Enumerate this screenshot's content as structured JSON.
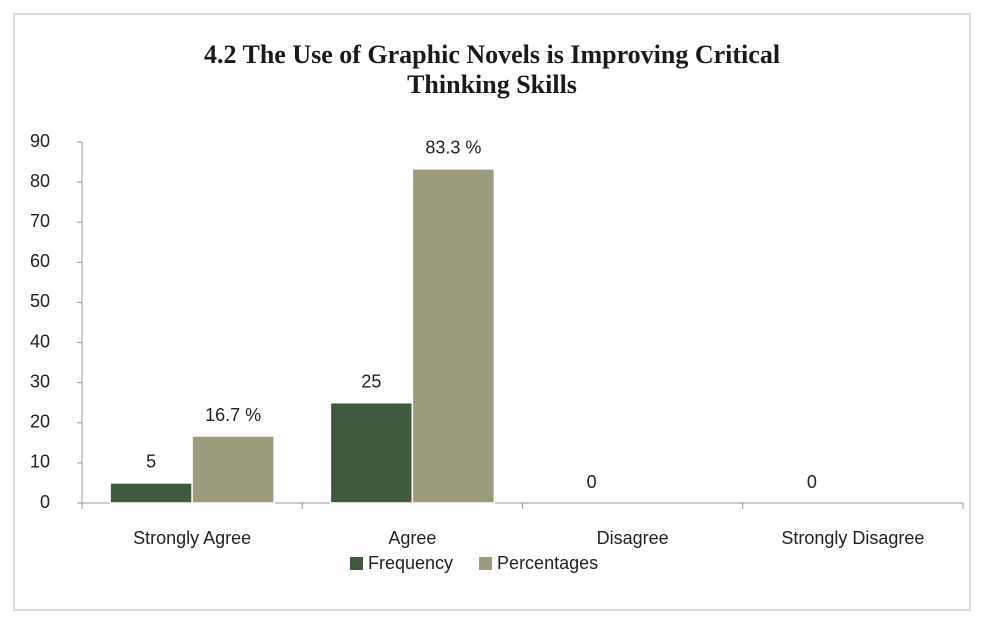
{
  "chart_data": {
    "type": "bar",
    "title": "4.2 The Use of  Graphic Novels is Improving Critical Thinking Skills",
    "categories": [
      "Strongly Agree",
      "Agree",
      "Disagree",
      "Strongly Disagree"
    ],
    "series": [
      {
        "name": "Frequency",
        "color": "#3f5a3c",
        "values": [
          5,
          25,
          0,
          0
        ],
        "value_labels": [
          "5",
          "25",
          "0",
          "0"
        ]
      },
      {
        "name": "Percentages",
        "color": "#9c9b7c",
        "values": [
          16.7,
          83.3,
          0,
          0
        ],
        "value_labels": [
          "16.7 %",
          "83.3 %",
          null,
          null
        ]
      }
    ],
    "ylim": [
      0,
      90
    ],
    "yticks": [
      0,
      10,
      20,
      30,
      40,
      50,
      60,
      70,
      80,
      90
    ],
    "grid": false,
    "legend": "bottom"
  }
}
